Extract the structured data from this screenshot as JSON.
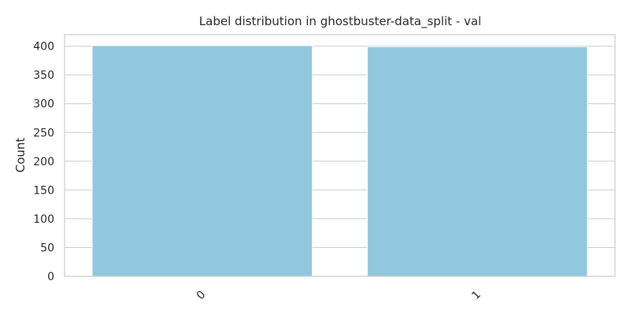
{
  "chart_data": {
    "type": "bar",
    "title": "Label distribution in ghostbuster-data_split - val",
    "xlabel": "",
    "ylabel": "Count",
    "categories": [
      "0",
      "1"
    ],
    "values": [
      401,
      399
    ],
    "ylim": [
      0,
      420
    ],
    "yticks": [
      0,
      50,
      100,
      150,
      200,
      250,
      300,
      350,
      400
    ],
    "grid": "horizontal",
    "legend": "none",
    "colors": {
      "bar": "#92c8df",
      "grid": "#cccccc",
      "axis_frame": "#cccccc",
      "text": "#262626"
    }
  }
}
